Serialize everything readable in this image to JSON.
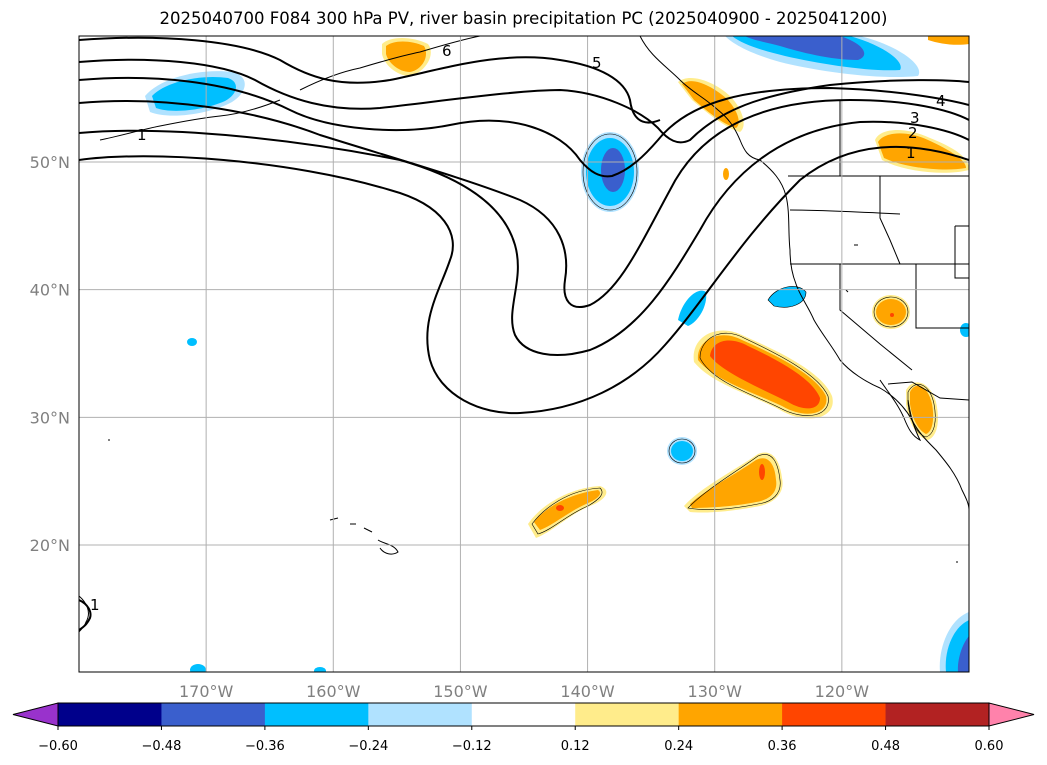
{
  "title": "2025040700 F084 300 hPa PV, river basin precipitation PC (2025040900 - 2025041200)",
  "map": {
    "lon_range": [
      -180,
      -110
    ],
    "lat_range": [
      10,
      60
    ],
    "lat_ticks": [
      {
        "value": 50,
        "label": "50°N"
      },
      {
        "value": 40,
        "label": "40°N"
      },
      {
        "value": 30,
        "label": "30°N"
      },
      {
        "value": 20,
        "label": "20°N"
      }
    ],
    "lon_ticks": [
      {
        "value": -170,
        "label": "170°W"
      },
      {
        "value": -160,
        "label": "160°W"
      },
      {
        "value": -150,
        "label": "150°W"
      },
      {
        "value": -140,
        "label": "140°W"
      },
      {
        "value": -130,
        "label": "130°W"
      },
      {
        "value": -120,
        "label": "120°W"
      }
    ],
    "gridlines": true,
    "pv_contour_labels": [
      "1",
      "1",
      "2",
      "3",
      "4",
      "5",
      "6",
      "1"
    ]
  },
  "colorbar": {
    "levels": [
      -0.6,
      -0.48,
      -0.36,
      -0.24,
      -0.12,
      0.12,
      0.24,
      0.36,
      0.48,
      0.6
    ],
    "tick_labels": [
      "−0.60",
      "−0.48",
      "−0.36",
      "−0.24",
      "−0.12",
      "0.12",
      "0.24",
      "0.36",
      "0.48",
      "0.60"
    ],
    "colors": [
      "#9932cc",
      "#00008b",
      "#3a5fcd",
      "#00bfff",
      "#b0e2ff",
      "#ffffff",
      "#ffec8b",
      "#ffa500",
      "#ff4500",
      "#b22222",
      "#ff82ab"
    ],
    "extend": "both"
  }
}
